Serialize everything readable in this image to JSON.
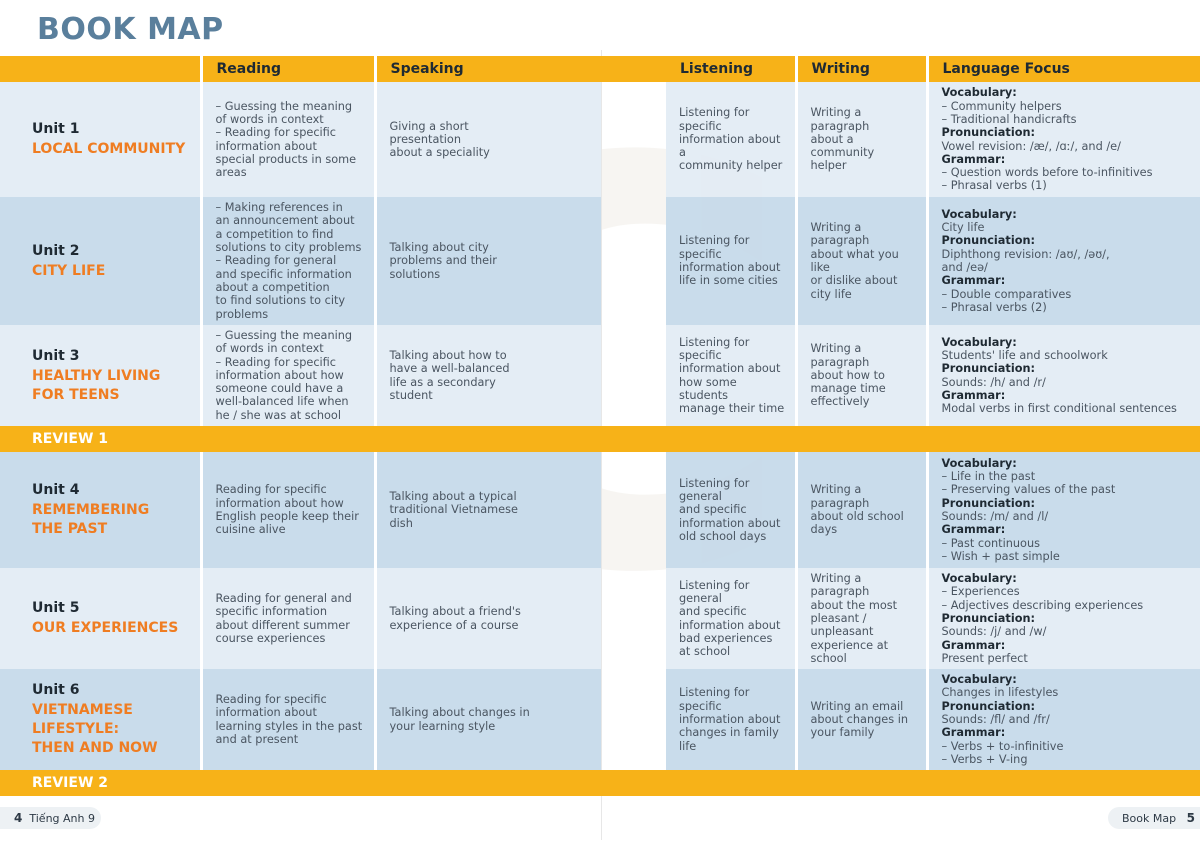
{
  "title": "BOOK MAP",
  "watermark": {
    "left": "LC",
    "right": "DA"
  },
  "headers": {
    "reading": "Reading",
    "speaking": "Speaking",
    "listening": "Listening",
    "writing": "Writing",
    "language_focus": "Language Focus"
  },
  "units": [
    {
      "number": "Unit 1",
      "name": "LOCAL COMMUNITY",
      "reading": "– Guessing the meaning\nof words in context\n– Reading for specific\ninformation about\nspecial products in some\nareas",
      "speaking": "Giving a short\npresentation\nabout a speciality",
      "listening": "Listening for specific\ninformation about a\ncommunity helper",
      "writing": "Writing a paragraph\nabout a community\nhelper",
      "language_focus": [
        {
          "head": "Vocabulary:",
          "lines": [
            "– Community helpers",
            "– Traditional handicrafts"
          ]
        },
        {
          "head": "Pronunciation:",
          "lines": [
            "Vowel revision: /æ/, /ɑː/, and /e/"
          ]
        },
        {
          "head": "Grammar:",
          "lines": [
            "– Question words before to-infinitives",
            "– Phrasal verbs (1)"
          ]
        }
      ]
    },
    {
      "number": "Unit 2",
      "name": "CITY LIFE",
      "reading": "– Making references in\nan announcement about\na competition to find\nsolutions to city problems\n– Reading for general\nand specific information\nabout a competition\nto find solutions to city\nproblems",
      "speaking": "Talking about city\nproblems and their\nsolutions",
      "listening": "Listening for specific\ninformation about\nlife in some cities",
      "writing": "Writing a paragraph\nabout what you like\nor dislike about\ncity life",
      "language_focus": [
        {
          "head": "Vocabulary:",
          "lines": [
            "City life"
          ]
        },
        {
          "head": "Pronunciation:",
          "lines": [
            "Diphthong revision: /aʊ/, /əʊ/,",
            "and /eə/"
          ]
        },
        {
          "head": "Grammar:",
          "lines": [
            "– Double comparatives",
            "– Phrasal verbs (2)"
          ]
        }
      ]
    },
    {
      "number": "Unit 3",
      "name": "HEALTHY LIVING\nFOR TEENS",
      "reading": "– Guessing the meaning\nof words in context\n– Reading for specific\ninformation about how\nsomeone could have a\nwell-balanced life when\nhe / she was at school",
      "speaking": "Talking about how to\nhave a well-balanced\nlife as a secondary\nstudent",
      "listening": "Listening for specific\ninformation about\nhow some students\nmanage their time",
      "writing": "Writing a paragraph\nabout how to\nmanage time\neffectively",
      "language_focus": [
        {
          "head": "Vocabulary:",
          "lines": [
            "Students' life and schoolwork"
          ]
        },
        {
          "head": "Pronunciation:",
          "lines": [
            "Sounds: /h/ and /r/"
          ]
        },
        {
          "head": "Grammar:",
          "lines": [
            "Modal verbs in first conditional sentences"
          ]
        }
      ]
    },
    {
      "number": "Unit 4",
      "name": "REMEMBERING\nTHE PAST",
      "reading": "Reading for specific\ninformation about how\nEnglish people keep their\ncuisine alive",
      "speaking": "Talking about a typical\ntraditional Vietnamese\ndish",
      "listening": "Listening for general\nand specific\ninformation about\nold school days",
      "writing": "Writing a paragraph\nabout old school\ndays",
      "language_focus": [
        {
          "head": "Vocabulary:",
          "lines": [
            "– Life in the past",
            "– Preserving values of the past"
          ]
        },
        {
          "head": "Pronunciation:",
          "lines": [
            "Sounds: /m/ and /l/"
          ]
        },
        {
          "head": "Grammar:",
          "lines": [
            "– Past continuous",
            "– Wish + past simple"
          ]
        }
      ]
    },
    {
      "number": "Unit 5",
      "name": "OUR EXPERIENCES",
      "reading": "Reading for general and\nspecific information\nabout different summer\ncourse experiences",
      "speaking": "Talking about a friend's\nexperience of a course",
      "listening": "Listening for general\nand specific\ninformation about\nbad experiences\nat school",
      "writing": "Writing a paragraph\nabout the most\npleasant / unpleasant\nexperience at\nschool",
      "language_focus": [
        {
          "head": "Vocabulary:",
          "lines": [
            "– Experiences",
            "– Adjectives describing experiences"
          ]
        },
        {
          "head": "Pronunciation:",
          "lines": [
            "Sounds: /j/ and /w/"
          ]
        },
        {
          "head": "Grammar:",
          "lines": [
            "Present perfect"
          ]
        }
      ]
    },
    {
      "number": "Unit 6",
      "name": "VIETNAMESE\nLIFESTYLE:\nTHEN AND NOW",
      "reading": "Reading for specific\ninformation about\nlearning styles in the past\nand at present",
      "speaking": "Talking about changes in\nyour learning style",
      "listening": "Listening for specific\ninformation about\nchanges in family\nlife",
      "writing": "Writing an email\nabout changes in\nyour family",
      "language_focus": [
        {
          "head": "Vocabulary:",
          "lines": [
            "Changes in lifestyles"
          ]
        },
        {
          "head": "Pronunciation:",
          "lines": [
            "Sounds: /fl/ and /fr/"
          ]
        },
        {
          "head": "Grammar:",
          "lines": [
            "– Verbs + to-infinitive",
            "– Verbs + V-ing"
          ]
        }
      ]
    }
  ],
  "reviews": [
    "REVIEW 1",
    "REVIEW 2"
  ],
  "footer": {
    "left_page": "4",
    "left_text": "Tiếng Anh 9",
    "right_text": "Book Map",
    "right_page": "5"
  },
  "colors": {
    "accent": "#f7b218",
    "unit_name": "#ef7d22",
    "title": "#5a7f9c",
    "row_light": "#e2ecf4",
    "row_dark": "#c6daea"
  }
}
